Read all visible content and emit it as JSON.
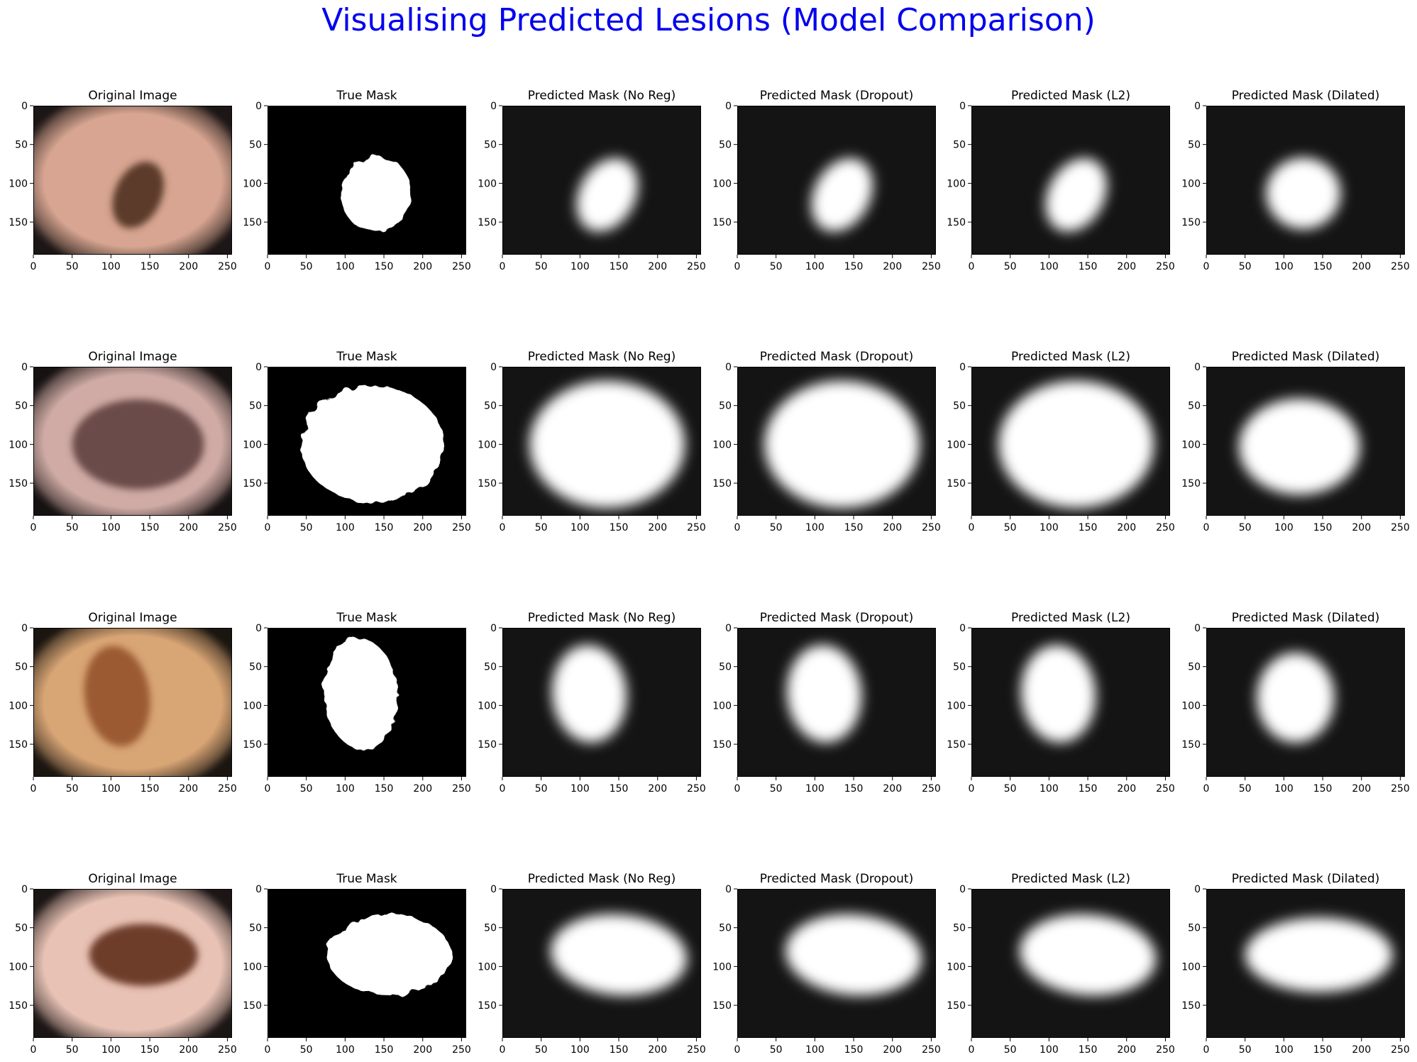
{
  "figure": {
    "title": "Visualising Predicted Lesions (Model Comparison)",
    "title_color": "#0000ee"
  },
  "chart_data": {
    "type": "image-grid",
    "title": "Visualising Predicted Lesions (Model Comparison)",
    "columns": [
      "Original Image",
      "True Mask",
      "Predicted Mask (No Reg)",
      "Predicted Mask (Dropout)",
      "Predicted Mask (L2)",
      "Predicted Mask (Dilated)"
    ],
    "x_ticks": [
      0,
      50,
      100,
      150,
      200,
      250
    ],
    "y_ticks": [
      0,
      50,
      100,
      150
    ],
    "xlim": [
      0,
      256
    ],
    "ylim": [
      192,
      0
    ],
    "grid": false,
    "rows": [
      {
        "skin": {
          "base": "#d7a591",
          "edge": "#6e5656"
        },
        "lesion": {
          "cx": 135,
          "cy": 115,
          "rx": 30,
          "ry": 45,
          "rot": 25,
          "color": "#5c3b2c"
        },
        "true_mask": {
          "cx": 140,
          "cy": 114,
          "rx": 45,
          "ry": 48,
          "rot": 15
        },
        "pred": [
          {
            "cx": 135,
            "cy": 115,
            "rx": 36,
            "ry": 50,
            "rot": 28
          },
          {
            "cx": 135,
            "cy": 115,
            "rx": 36,
            "ry": 50,
            "rot": 28
          },
          {
            "cx": 135,
            "cy": 115,
            "rx": 36,
            "ry": 50,
            "rot": 28
          },
          {
            "cx": 125,
            "cy": 113,
            "rx": 48,
            "ry": 46,
            "rot": 0
          }
        ]
      },
      {
        "skin": {
          "base": "#d0aba5",
          "edge": "#5a4848"
        },
        "lesion": {
          "cx": 135,
          "cy": 100,
          "rx": 85,
          "ry": 58,
          "rot": 0,
          "color": "#6b4c48"
        },
        "true_mask": {
          "cx": 135,
          "cy": 100,
          "rx": 92,
          "ry": 75,
          "rot": 0
        },
        "pred": [
          {
            "cx": 135,
            "cy": 100,
            "rx": 100,
            "ry": 82,
            "rot": 0
          },
          {
            "cx": 135,
            "cy": 100,
            "rx": 100,
            "ry": 82,
            "rot": 0
          },
          {
            "cx": 135,
            "cy": 100,
            "rx": 100,
            "ry": 82,
            "rot": 0
          },
          {
            "cx": 120,
            "cy": 103,
            "rx": 78,
            "ry": 62,
            "rot": 0
          }
        ]
      },
      {
        "skin": {
          "base": "#d8a574",
          "edge": "#6a5540"
        },
        "lesion": {
          "cx": 108,
          "cy": 88,
          "rx": 42,
          "ry": 65,
          "rot": -8,
          "color": "#9b5a30"
        },
        "true_mask": {
          "cx": 120,
          "cy": 85,
          "rx": 48,
          "ry": 72,
          "rot": -5
        },
        "pred": [
          {
            "cx": 112,
            "cy": 85,
            "rx": 48,
            "ry": 63,
            "rot": -5
          },
          {
            "cx": 112,
            "cy": 85,
            "rx": 48,
            "ry": 63,
            "rot": -5
          },
          {
            "cx": 112,
            "cy": 85,
            "rx": 48,
            "ry": 63,
            "rot": -5
          },
          {
            "cx": 115,
            "cy": 90,
            "rx": 50,
            "ry": 58,
            "rot": 0
          }
        ]
      },
      {
        "skin": {
          "base": "#e8c2b5",
          "edge": "#6d5652"
        },
        "lesion": {
          "cx": 142,
          "cy": 85,
          "rx": 70,
          "ry": 40,
          "rot": 0,
          "color": "#6e3d2a"
        },
        "true_mask": {
          "cx": 157,
          "cy": 85,
          "rx": 80,
          "ry": 52,
          "rot": 0
        },
        "pred": [
          {
            "cx": 150,
            "cy": 85,
            "rx": 88,
            "ry": 52,
            "rot": 5
          },
          {
            "cx": 150,
            "cy": 85,
            "rx": 88,
            "ry": 52,
            "rot": 5
          },
          {
            "cx": 150,
            "cy": 85,
            "rx": 88,
            "ry": 52,
            "rot": 5
          },
          {
            "cx": 145,
            "cy": 85,
            "rx": 95,
            "ry": 48,
            "rot": 0
          }
        ]
      }
    ]
  }
}
